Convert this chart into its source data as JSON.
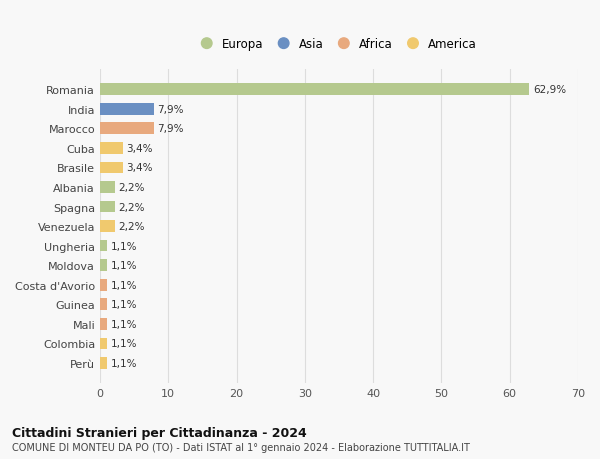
{
  "countries": [
    "Perù",
    "Colombia",
    "Mali",
    "Guinea",
    "Costa d'Avorio",
    "Moldova",
    "Ungheria",
    "Venezuela",
    "Spagna",
    "Albania",
    "Brasile",
    "Cuba",
    "Marocco",
    "India",
    "Romania"
  ],
  "values": [
    1.1,
    1.1,
    1.1,
    1.1,
    1.1,
    1.1,
    1.1,
    2.2,
    2.2,
    2.2,
    3.4,
    3.4,
    7.9,
    7.9,
    62.9
  ],
  "labels": [
    "1,1%",
    "1,1%",
    "1,1%",
    "1,1%",
    "1,1%",
    "1,1%",
    "1,1%",
    "2,2%",
    "2,2%",
    "2,2%",
    "3,4%",
    "3,4%",
    "7,9%",
    "7,9%",
    "62,9%"
  ],
  "colors": [
    "#f0c96e",
    "#f0c96e",
    "#e8a97e",
    "#e8a97e",
    "#e8a97e",
    "#b5c98e",
    "#b5c98e",
    "#f0c96e",
    "#b5c98e",
    "#b5c98e",
    "#f0c96e",
    "#f0c96e",
    "#e8a97e",
    "#6a8fc2",
    "#b5c98e"
  ],
  "legend_labels": [
    "Europa",
    "Asia",
    "Africa",
    "America"
  ],
  "legend_colors": [
    "#b5c98e",
    "#6a8fc2",
    "#e8a97e",
    "#f0c96e"
  ],
  "title": "Cittadini Stranieri per Cittadinanza - 2024",
  "subtitle": "COMUNE DI MONTEU DA PO (TO) - Dati ISTAT al 1° gennaio 2024 - Elaborazione TUTTITALIA.IT",
  "xlim": [
    0,
    70
  ],
  "xticks": [
    0,
    10,
    20,
    30,
    40,
    50,
    60,
    70
  ],
  "bg_color": "#f8f8f8",
  "grid_color": "#dddddd"
}
